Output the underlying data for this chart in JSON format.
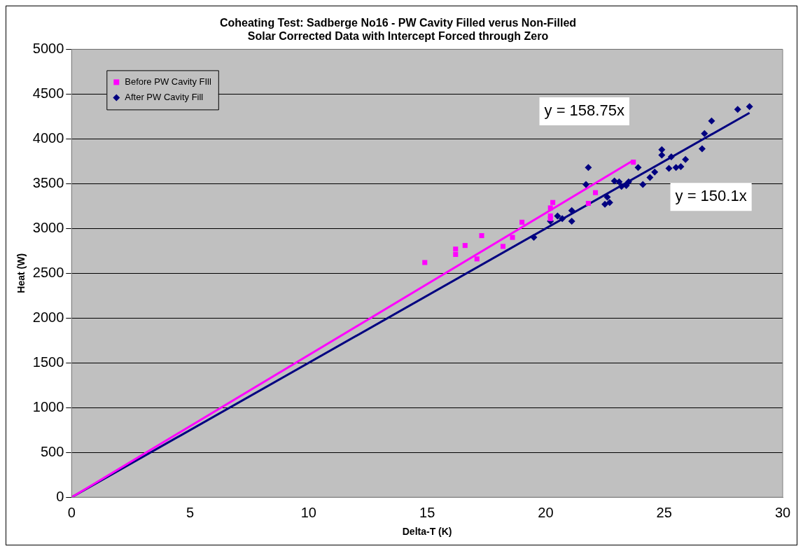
{
  "chart_data": {
    "type": "scatter",
    "title": "Coheating Test: Sadberge No16 - PW Cavity Filled verus Non-Filled\nSolar Corrected Data with Intercept Forced through Zero",
    "xlabel": "Delta-T (K)",
    "ylabel": "Heat (W)",
    "xlim": [
      0,
      30
    ],
    "xticks": [
      0,
      5,
      10,
      15,
      20,
      25,
      30
    ],
    "ylim": [
      0,
      5000
    ],
    "yticks": [
      0,
      500,
      1000,
      1500,
      2000,
      2500,
      3000,
      3500,
      4000,
      4500,
      5000
    ],
    "grid": "y",
    "legend": "top left",
    "series": [
      {
        "name": "Before PW Cavity FIll",
        "color": "#ff00ff",
        "marker": "square",
        "x": [
          14.9,
          16.2,
          16.2,
          16.6,
          17.1,
          17.3,
          18.2,
          18.6,
          19.0,
          20.2,
          20.2,
          20.3,
          20.2,
          21.8,
          22.1,
          23.7
        ],
        "values": [
          2620,
          2770,
          2710,
          2810,
          2660,
          2920,
          2800,
          2900,
          3070,
          3110,
          3230,
          3290,
          3140,
          3280,
          3400,
          3740
        ]
      },
      {
        "name": "After PW Cavity Fill",
        "color": "#000080",
        "marker": "diamond",
        "x": [
          19.5,
          20.2,
          20.5,
          20.7,
          21.1,
          21.1,
          21.8,
          21.7,
          22.5,
          22.6,
          22.7,
          22.9,
          23.1,
          23.2,
          23.4,
          23.5,
          23.9,
          24.1,
          24.4,
          24.6,
          24.9,
          24.9,
          25.2,
          25.3,
          25.5,
          25.7,
          25.9,
          26.6,
          26.7,
          27.0,
          28.1,
          28.6
        ],
        "values": [
          2900,
          3080,
          3140,
          3110,
          3200,
          3080,
          3680,
          3490,
          3270,
          3350,
          3290,
          3530,
          3520,
          3470,
          3480,
          3520,
          3680,
          3490,
          3570,
          3630,
          3880,
          3820,
          3670,
          3800,
          3680,
          3690,
          3770,
          3890,
          4060,
          4200,
          4330,
          4360
        ]
      },
      {
        "type": "line",
        "color": "#ff00ff",
        "x": [
          0,
          23.7
        ],
        "values": [
          0,
          3760
        ]
      },
      {
        "type": "line",
        "color": "#000080",
        "x": [
          0,
          28.6
        ],
        "values": [
          0,
          4290
        ]
      }
    ],
    "annotations": [
      "y = 158.75x",
      "y = 150.1x"
    ]
  }
}
